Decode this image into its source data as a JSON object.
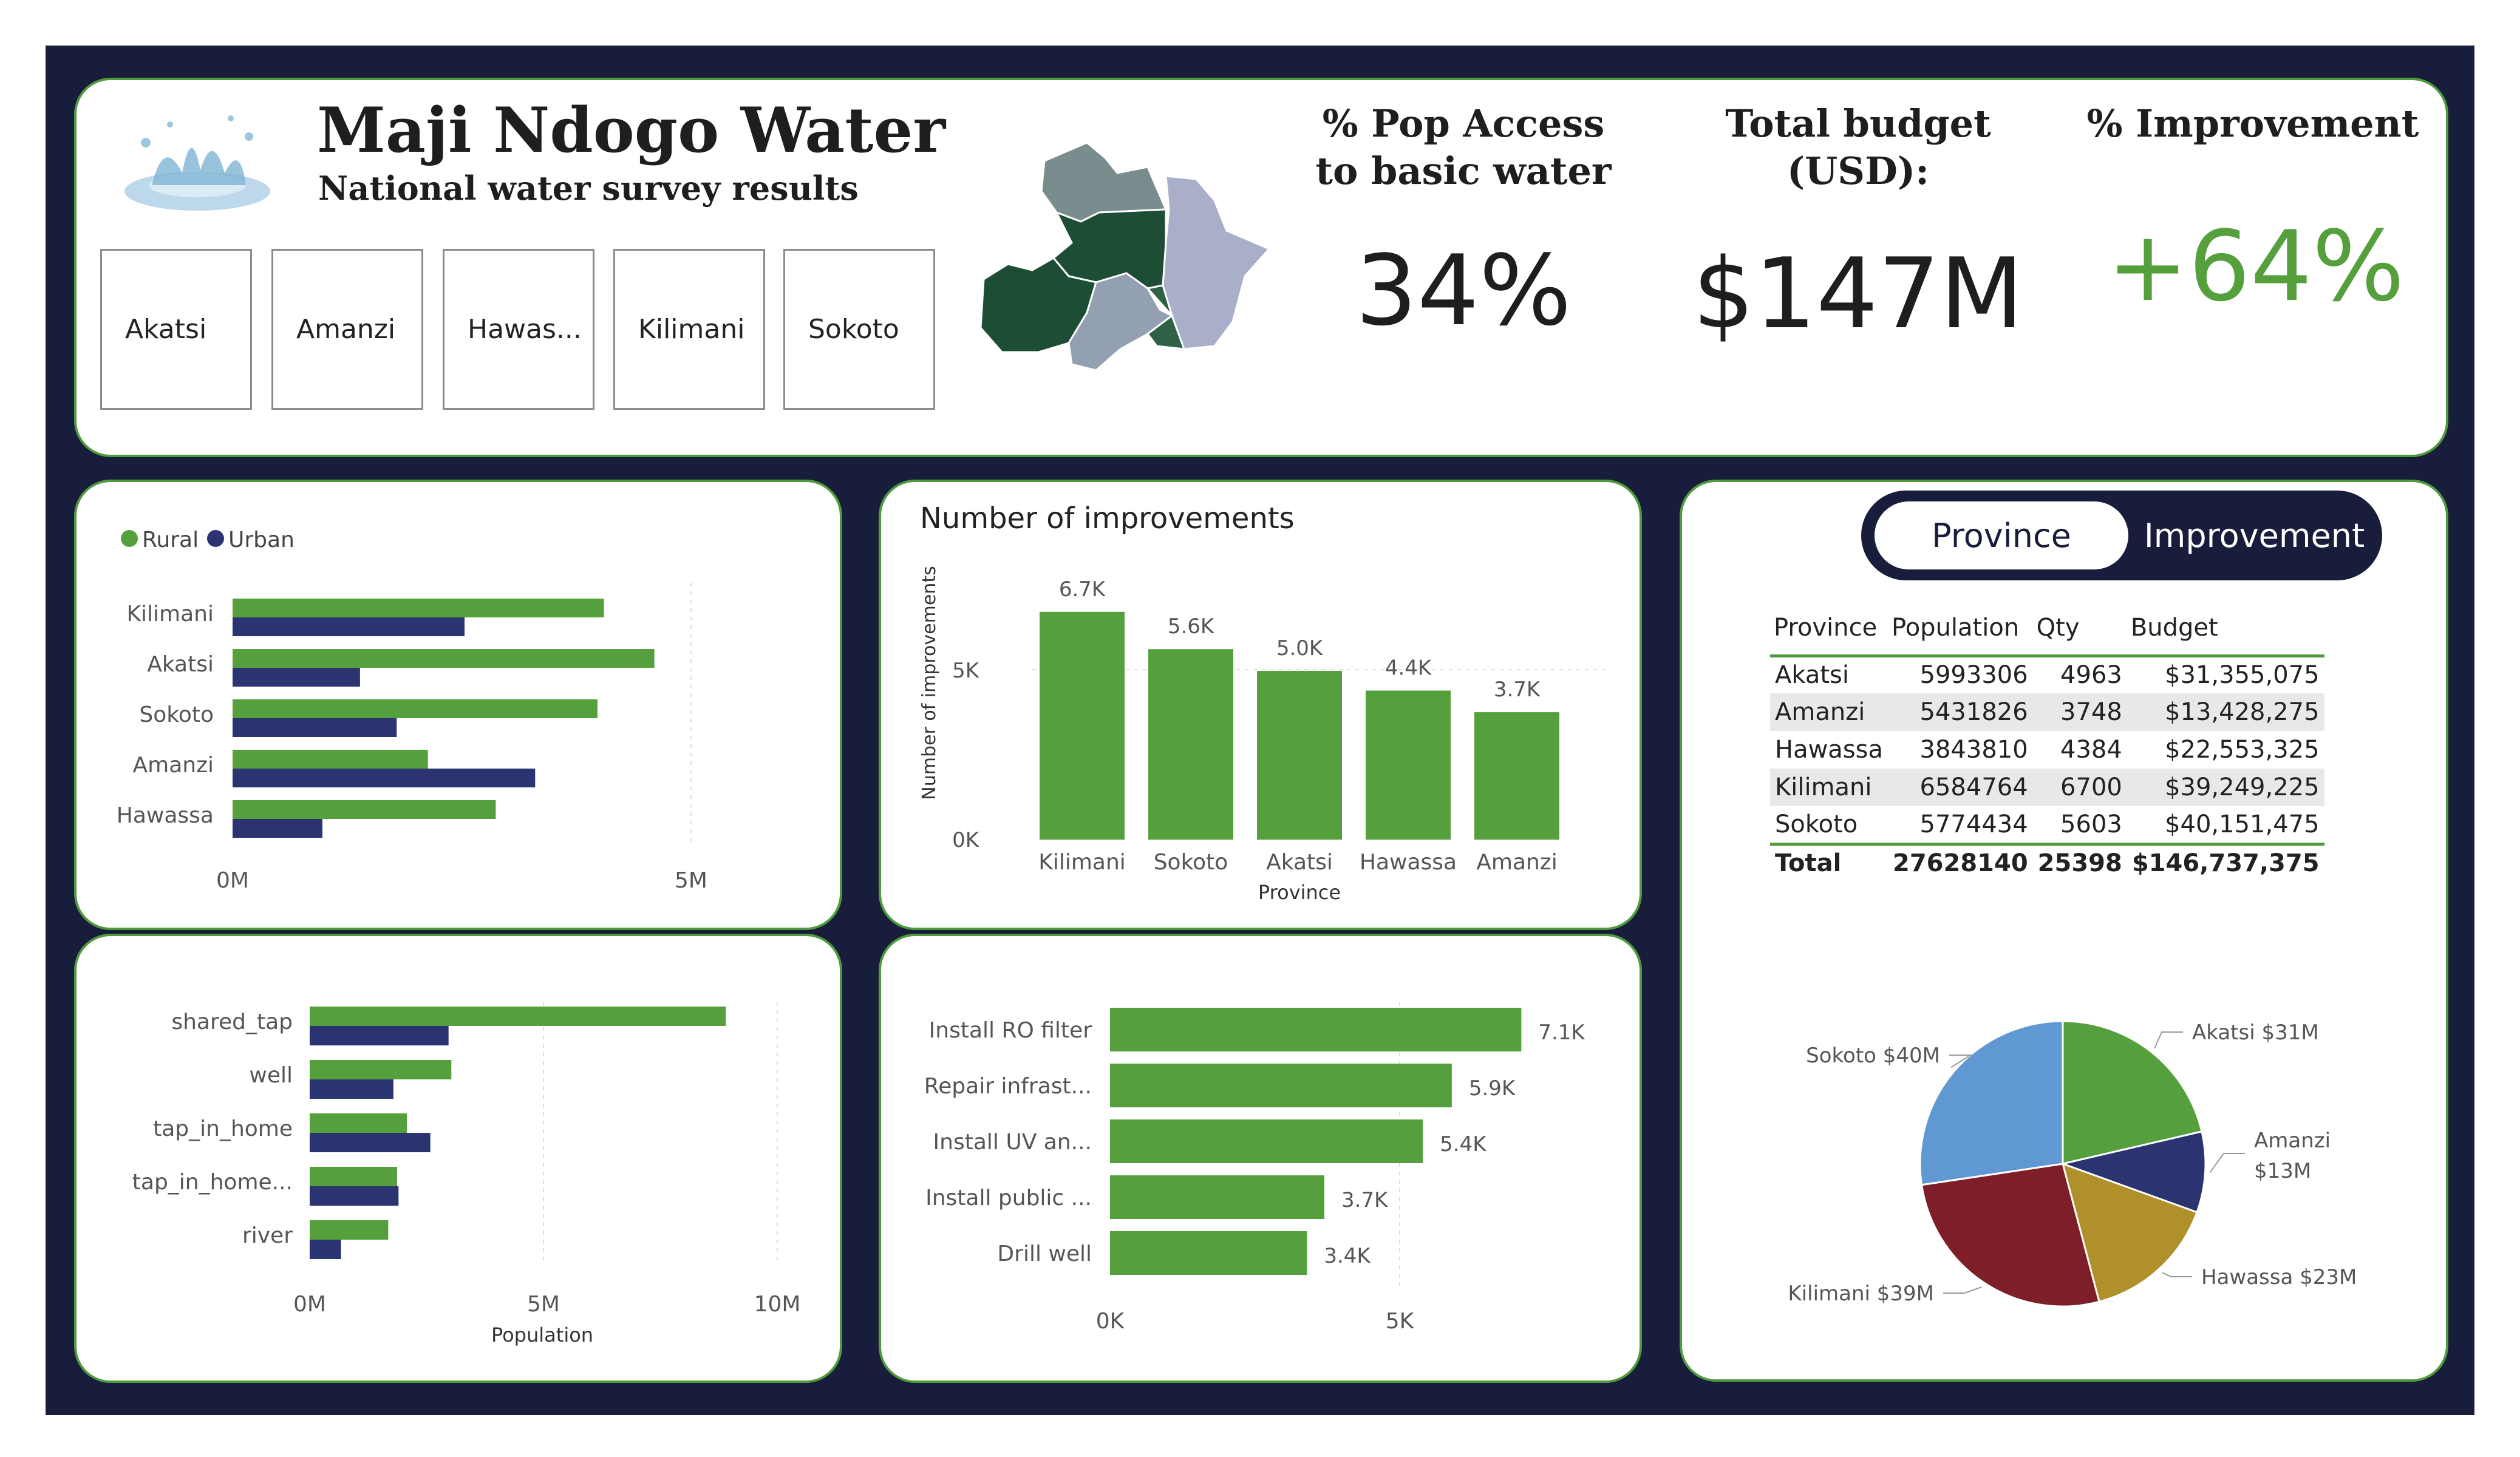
{
  "header": {
    "title": "Maji Ndogo Water",
    "subtitle": "National water survey results",
    "slicers": [
      "Akatsi",
      "Amanzi",
      "Hawas...",
      "Kilimani",
      "Sokoto"
    ]
  },
  "kpis": [
    {
      "title": "% Pop Access to basic water",
      "value": "34%"
    },
    {
      "title": "Total budget (USD):",
      "value": "$147M"
    },
    {
      "title": "% Improvement",
      "value": "+64%"
    }
  ],
  "colors": {
    "rural": "#55a03c",
    "urban": "#2b3471",
    "frame": "#181d3b",
    "accent_green": "#55a03c"
  },
  "toggle": {
    "active": "Province",
    "inactive": "Improvement"
  },
  "table": {
    "headers": [
      "Province",
      "Population",
      "Qty",
      "Budget"
    ],
    "rows": [
      [
        "Akatsi",
        "5993306",
        "4963",
        "$31,355,075"
      ],
      [
        "Amanzi",
        "5431826",
        "3748",
        "$13,428,275"
      ],
      [
        "Hawassa",
        "3843810",
        "4384",
        "$22,553,325"
      ],
      [
        "Kilimani",
        "6584764",
        "6700",
        "$39,249,225"
      ],
      [
        "Sokoto",
        "5774434",
        "5603",
        "$40,151,475"
      ]
    ],
    "total": [
      "Total",
      "27628140",
      "25398",
      "$146,737,375"
    ]
  },
  "chart_data": [
    {
      "type": "bar",
      "orientation": "horizontal",
      "categories": [
        "Kilimani",
        "Akatsi",
        "Sokoto",
        "Amanzi",
        "Hawassa"
      ],
      "series": [
        {
          "name": "Rural",
          "values": [
            4050000,
            4600000,
            3980000,
            2130000,
            2870000
          ]
        },
        {
          "name": "Urban",
          "values": [
            2530000,
            1390000,
            1790000,
            3300000,
            980000
          ]
        }
      ],
      "xticks": [
        "0M",
        "5M"
      ],
      "xlim": [
        0,
        5000000
      ],
      "legend": "top-left"
    },
    {
      "type": "bar",
      "title": "Number of improvements",
      "categories": [
        "Kilimani",
        "Sokoto",
        "Akatsi",
        "Hawassa",
        "Amanzi"
      ],
      "values": [
        6700,
        5603,
        4963,
        4384,
        3748
      ],
      "data_labels": [
        "6.7K",
        "5.6K",
        "5.0K",
        "4.4K",
        "3.7K"
      ],
      "yticks": [
        "0K",
        "5K"
      ],
      "ylim": [
        0,
        7000
      ],
      "xlabel": "Province",
      "ylabel": "Number of improvements"
    },
    {
      "type": "bar",
      "orientation": "horizontal",
      "categories": [
        "shared_tap",
        "well",
        "tap_in_home",
        "tap_in_home...",
        "river"
      ],
      "series": [
        {
          "name": "Rural",
          "values": [
            8900000,
            3030000,
            2080000,
            1870000,
            1680000
          ]
        },
        {
          "name": "Urban",
          "values": [
            2970000,
            1790000,
            2580000,
            1900000,
            670000
          ]
        }
      ],
      "xticks": [
        "0M",
        "5M",
        "10M"
      ],
      "xlim": [
        0,
        10000000
      ],
      "xlabel": "Population"
    },
    {
      "type": "bar",
      "orientation": "horizontal",
      "categories": [
        "Install RO filter",
        "Repair infrast...",
        "Install UV an...",
        "Install public ...",
        "Drill well"
      ],
      "values": [
        7100,
        5900,
        5400,
        3700,
        3400
      ],
      "data_labels": [
        "7.1K",
        "5.9K",
        "5.4K",
        "3.7K",
        "3.4K"
      ],
      "xticks": [
        "0K",
        "5K"
      ],
      "xlim": [
        0,
        7200
      ]
    },
    {
      "type": "pie",
      "slices": [
        {
          "label": "Akatsi $31M",
          "value": 31355075,
          "color": "#55a03c"
        },
        {
          "label": "Amanzi $13M",
          "value": 13428275,
          "color": "#2b3471"
        },
        {
          "label": "Hawassa $23M",
          "value": 22553325,
          "color": "#b0902a"
        },
        {
          "label": "Kilimani $39M",
          "value": 39249225,
          "color": "#7e1e28"
        },
        {
          "label": "Sokoto $40M",
          "value": 40151475,
          "color": "#5f98d2"
        }
      ]
    }
  ]
}
